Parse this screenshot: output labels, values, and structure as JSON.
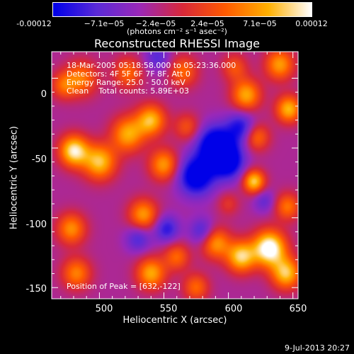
{
  "colorbar": {
    "ticks": [
      "-0.00012",
      "−7.1e−05",
      "−2.4e−05",
      "2.4e−05",
      "7.1e−05",
      "0.00012"
    ],
    "units": "(photons cm⁻² s⁻¹ asec⁻²)",
    "range": [
      -0.00012,
      0.00012
    ],
    "colors": [
      "#0000e8",
      "#5a2ad8",
      "#9a28b8",
      "#d8283a",
      "#ff5a00",
      "#ffb000",
      "#ffffff"
    ]
  },
  "chart_data": {
    "type": "heatmap",
    "title": "Reconstructed RHESSI Image",
    "xlabel": "Heliocentric X (arcsec)",
    "ylabel": "Heliocentric Y (arcsec)",
    "xlim": [
      463,
      654
    ],
    "ylim": [
      -158,
      19
    ],
    "xticks": [
      "500",
      "550",
      "600",
      "650"
    ],
    "xtick_values": [
      500,
      550,
      600,
      650
    ],
    "yticks": [
      "0",
      "-50",
      "-100",
      "-150"
    ],
    "ytick_values": [
      0,
      -50,
      -100,
      -150
    ],
    "grid": "off",
    "colormap": "rhessi-blue-purple-red-yellow-white",
    "blobs": [
      {
        "x": 480,
        "y": -52,
        "amp": 1.05,
        "sigma": 8
      },
      {
        "x": 500,
        "y": -60,
        "amp": 0.9,
        "sigma": 9
      },
      {
        "x": 522,
        "y": -40,
        "amp": 0.8,
        "sigma": 9
      },
      {
        "x": 540,
        "y": -30,
        "amp": 0.85,
        "sigma": 8
      },
      {
        "x": 550,
        "y": -62,
        "amp": 0.75,
        "sigma": 8
      },
      {
        "x": 534,
        "y": -98,
        "amp": 0.75,
        "sigma": 8
      },
      {
        "x": 478,
        "y": -108,
        "amp": 0.7,
        "sigma": 8
      },
      {
        "x": 482,
        "y": -140,
        "amp": 0.65,
        "sigma": 8
      },
      {
        "x": 540,
        "y": -140,
        "amp": 0.8,
        "sigma": 8
      },
      {
        "x": 560,
        "y": -128,
        "amp": 0.55,
        "sigma": 7
      },
      {
        "x": 486,
        "y": 0,
        "amp": 0.6,
        "sigma": 9
      },
      {
        "x": 472,
        "y": -5,
        "amp": 0.5,
        "sigma": 7
      },
      {
        "x": 522,
        "y": 4,
        "amp": 0.55,
        "sigma": 8
      },
      {
        "x": 565,
        "y": 5,
        "amp": 0.55,
        "sigma": 8
      },
      {
        "x": 568,
        "y": -35,
        "amp": 0.45,
        "sigma": 7
      },
      {
        "x": 605,
        "y": 8,
        "amp": 0.45,
        "sigma": 7
      },
      {
        "x": 614,
        "y": -12,
        "amp": 0.8,
        "sigma": 8
      },
      {
        "x": 622,
        "y": -42,
        "amp": 0.6,
        "sigma": 7
      },
      {
        "x": 640,
        "y": 10,
        "amp": 0.75,
        "sigma": 8
      },
      {
        "x": 647,
        "y": -22,
        "amp": 0.85,
        "sigma": 7
      },
      {
        "x": 620,
        "y": -74,
        "amp": 0.95,
        "sigma": 6
      },
      {
        "x": 646,
        "y": -92,
        "amp": 0.6,
        "sigma": 7
      },
      {
        "x": 590,
        "y": -118,
        "amp": 0.75,
        "sigma": 8
      },
      {
        "x": 610,
        "y": -128,
        "amp": 0.95,
        "sigma": 8
      },
      {
        "x": 632,
        "y": -122,
        "amp": 1.25,
        "sigma": 9
      },
      {
        "x": 645,
        "y": -140,
        "amp": 0.9,
        "sigma": 8
      },
      {
        "x": 575,
        "y": -150,
        "amp": 0.55,
        "sigma": 7
      },
      {
        "x": 600,
        "y": -90,
        "amp": 0.3,
        "sigma": 6
      },
      {
        "x": 590,
        "y": -48,
        "amp": -0.95,
        "sigma": 10
      },
      {
        "x": 575,
        "y": -70,
        "amp": -0.9,
        "sigma": 10
      },
      {
        "x": 600,
        "y": -60,
        "amp": -0.8,
        "sigma": 9
      },
      {
        "x": 610,
        "y": -35,
        "amp": -0.6,
        "sigma": 8
      },
      {
        "x": 552,
        "y": -108,
        "amp": -0.55,
        "sigma": 7
      },
      {
        "x": 580,
        "y": -110,
        "amp": -0.5,
        "sigma": 7
      },
      {
        "x": 530,
        "y": -115,
        "amp": -0.45,
        "sigma": 7
      },
      {
        "x": 545,
        "y": 15,
        "amp": -0.4,
        "sigma": 7
      },
      {
        "x": 628,
        "y": -88,
        "amp": -0.35,
        "sigma": 6
      }
    ]
  },
  "info": {
    "time_range": "18-Mar-2005 05:18:58.000 to 05:23:36.000",
    "detectors": "Detectors: 4F 5F 6F 7F 8F, Att 0",
    "energy": "Energy Range: 25.0 - 50.0 keV",
    "method": "Clean    Total counts: 5.89E+03",
    "peak": "Position of Peak = [632,-122]"
  },
  "date_stamp": "9-Jul-2013 20:27"
}
